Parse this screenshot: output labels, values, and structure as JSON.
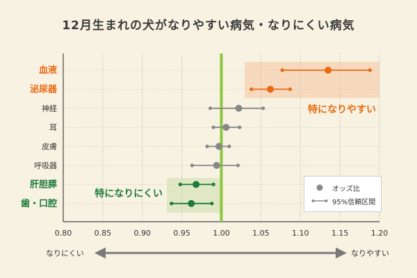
{
  "title": "12月生まれの犬がなりやすい病気・なりにくい病気",
  "colors": {
    "orange": "#ea6a12",
    "green": "#1e7a3c",
    "gray": "#888888",
    "orange_band": "#f7d9bd",
    "green_band": "#dfe8c2",
    "ref_line": "#8cc63f",
    "label_dark": "#333333"
  },
  "chart_data": {
    "type": "scatter",
    "title": "12月生まれの犬がなりやすい病気・なりにくい病気",
    "xlabel": "",
    "ylabel": "",
    "xlim": [
      0.8,
      1.2
    ],
    "xticks": [
      "0.80",
      "0.85",
      "0.90",
      "0.95",
      "1.00",
      "1.05",
      "1.10",
      "1.15",
      "1.20"
    ],
    "reference_line": 1.0,
    "grid": true,
    "categories": [
      "血液",
      "泌尿器",
      "神経",
      "耳",
      "皮膚",
      "呼吸器",
      "肝胆膵",
      "歯・口腔"
    ],
    "points": [
      {
        "label": "血液",
        "or": 1.135,
        "low": 1.077,
        "high": 1.188,
        "group": "high"
      },
      {
        "label": "泌尿器",
        "or": 1.062,
        "low": 1.038,
        "high": 1.087,
        "group": "high"
      },
      {
        "label": "神経",
        "or": 1.022,
        "low": 0.986,
        "high": 1.053,
        "group": "none"
      },
      {
        "label": "耳",
        "or": 1.006,
        "low": 0.99,
        "high": 1.023,
        "group": "none"
      },
      {
        "label": "皮膚",
        "or": 0.997,
        "low": 0.982,
        "high": 1.01,
        "group": "none"
      },
      {
        "label": "呼吸器",
        "or": 0.994,
        "low": 0.963,
        "high": 1.021,
        "group": "none"
      },
      {
        "label": "肝胆膵",
        "or": 0.968,
        "low": 0.948,
        "high": 0.99,
        "group": "low"
      },
      {
        "label": "歯・口腔",
        "or": 0.962,
        "low": 0.937,
        "high": 0.988,
        "group": "low"
      }
    ],
    "annotations": {
      "high": "特になりやすい",
      "low": "特になりにくい"
    },
    "legend": {
      "placement": "bottom-right",
      "point": "オッズ比",
      "ci": "95%信頼区間"
    },
    "axis_arrow": {
      "left": "なりにくい",
      "right": "なりやすい"
    }
  }
}
